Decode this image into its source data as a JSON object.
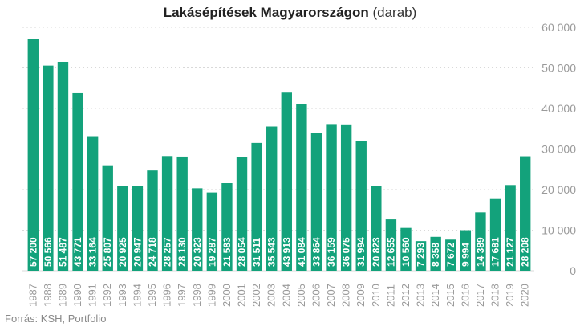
{
  "title": {
    "main": "Lakásépítések Magyarországon",
    "unit": "(darab)"
  },
  "source": "Forrás: KSH, Portfolio",
  "colors": {
    "bar": "#13a27b",
    "grid": "#d9d9d9",
    "axis": "#9a9a9a"
  },
  "chart_data": {
    "type": "bar",
    "title": "Lakásépítések Magyarországon (darab)",
    "xlabel": "",
    "ylabel": "",
    "ylim": [
      0,
      60000
    ],
    "yticks": [
      0,
      10000,
      20000,
      30000,
      40000,
      50000,
      60000
    ],
    "ytick_labels": [
      "0",
      "10 000",
      "20 000",
      "30 000",
      "40 000",
      "50 000",
      "60 000"
    ],
    "y_axis_position": "right",
    "grid": true,
    "legend": "none",
    "categories": [
      "1987",
      "1988",
      "1989",
      "1990",
      "1991",
      "1992",
      "1993",
      "1994",
      "1995",
      "1996",
      "1997",
      "1998",
      "1999",
      "2000",
      "2001",
      "2002",
      "2003",
      "2004",
      "2005",
      "2006",
      "2007",
      "2008",
      "2009",
      "2010",
      "2011",
      "2012",
      "2013",
      "2014",
      "2015",
      "2016",
      "2017",
      "2018",
      "2019",
      "2020"
    ],
    "values": [
      57200,
      50566,
      51487,
      43771,
      33164,
      25807,
      20925,
      20947,
      24718,
      28257,
      28130,
      20323,
      19287,
      21583,
      28054,
      31511,
      35543,
      43913,
      41084,
      33864,
      36159,
      36075,
      31994,
      20823,
      12655,
      10560,
      7293,
      8358,
      7672,
      9994,
      14389,
      17681,
      21127,
      28208
    ],
    "value_labels": [
      "57 200",
      "50 566",
      "51 487",
      "43 771",
      "33 164",
      "25 807",
      "20 925",
      "20 947",
      "24 718",
      "28 257",
      "28 130",
      "20 323",
      "19 287",
      "21 583",
      "28 054",
      "31 511",
      "35 543",
      "43 913",
      "41 084",
      "33 864",
      "36 159",
      "36 075",
      "31 994",
      "20 823",
      "12 655",
      "10 560",
      "7 293",
      "8 358",
      "7 672",
      "9 994",
      "14 389",
      "17 681",
      "21 127",
      "28 208"
    ]
  }
}
